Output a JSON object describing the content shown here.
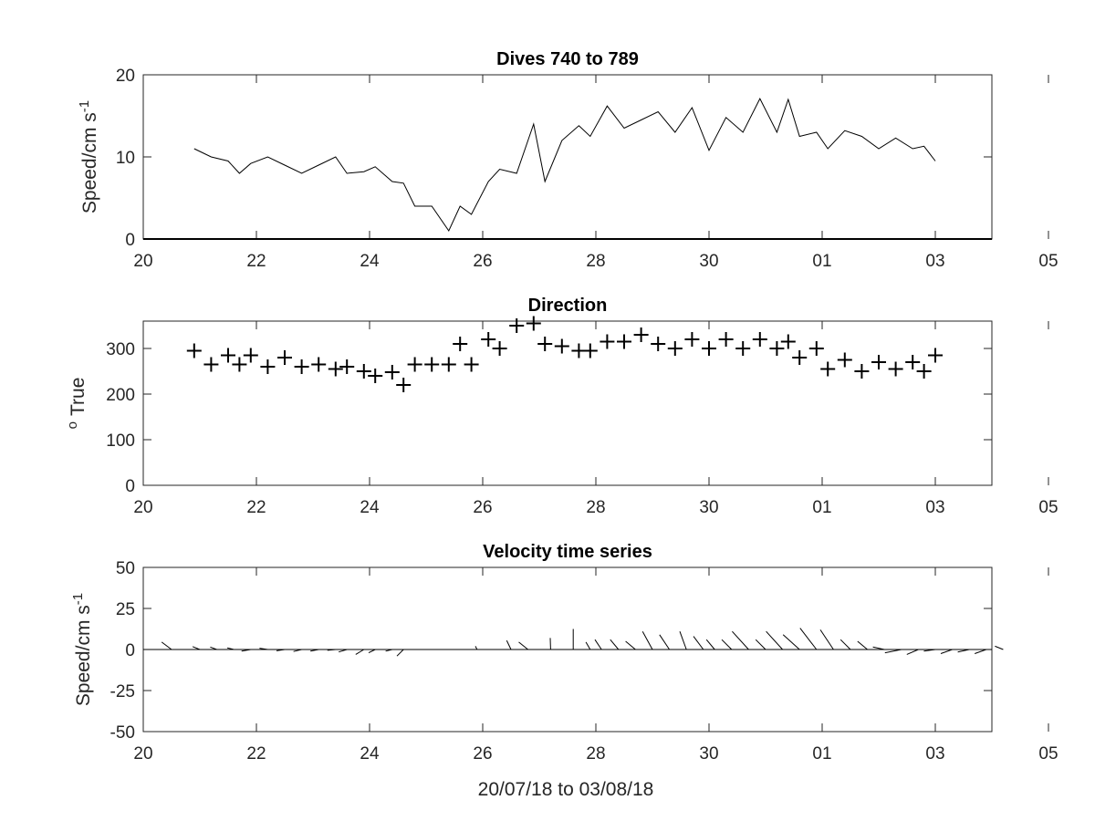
{
  "chart_data": [
    {
      "type": "line",
      "title": "Dives 740 to 789",
      "ylabel": "Speed/cm s",
      "ylabel_sup": "-1",
      "xlim": [
        20,
        35
      ],
      "ylim": [
        0,
        20
      ],
      "x_tick_labels": [
        "20",
        "22",
        "24",
        "26",
        "28",
        "30",
        "01",
        "03",
        "05"
      ],
      "y_ticks": [
        0,
        10,
        20
      ],
      "x": [
        20.9,
        21.2,
        21.5,
        21.7,
        21.9,
        22.2,
        22.5,
        22.8,
        23.1,
        23.4,
        23.6,
        23.9,
        24.1,
        24.4,
        24.6,
        24.8,
        25.1,
        25.4,
        25.6,
        25.8,
        26.1,
        26.3,
        26.6,
        26.9,
        27.1,
        27.4,
        27.7,
        27.9,
        28.2,
        28.5,
        28.8,
        29.1,
        29.4,
        29.7,
        30.0,
        30.3,
        30.6,
        30.9,
        31.2,
        31.4,
        31.6,
        31.9,
        32.1,
        32.4,
        32.7,
        33.0,
        33.3,
        33.6,
        33.8,
        34.0
      ],
      "values": [
        11.0,
        10.0,
        9.5,
        8.0,
        9.2,
        10.0,
        9.0,
        8.0,
        9.0,
        10.0,
        8.0,
        8.2,
        8.8,
        7.0,
        6.8,
        4.0,
        4.0,
        1.0,
        4.0,
        3.0,
        7.0,
        8.5,
        8.0,
        14.0,
        7.0,
        12.0,
        13.8,
        12.5,
        16.2,
        13.5,
        14.5,
        15.5,
        13.0,
        16.0,
        10.8,
        14.8,
        13.0,
        17.1,
        13.0,
        17.0,
        12.5,
        13.0,
        11.0,
        13.2,
        12.5,
        11.0,
        12.3,
        11.0,
        11.3,
        9.5
      ]
    },
    {
      "type": "scatter",
      "title": "Direction",
      "ylabel": "True",
      "ylabel_pre": "o",
      "xlim": [
        20,
        35
      ],
      "ylim": [
        0,
        360
      ],
      "x_tick_labels": [
        "20",
        "22",
        "24",
        "26",
        "28",
        "30",
        "01",
        "03",
        "05"
      ],
      "y_ticks": [
        0,
        100,
        200,
        300
      ],
      "x": [
        20.9,
        21.2,
        21.5,
        21.7,
        21.9,
        22.2,
        22.5,
        22.8,
        23.1,
        23.4,
        23.6,
        23.9,
        24.1,
        24.4,
        24.6,
        24.8,
        25.1,
        25.4,
        25.6,
        25.8,
        26.1,
        26.3,
        26.6,
        26.9,
        27.1,
        27.4,
        27.7,
        27.9,
        28.2,
        28.5,
        28.8,
        29.1,
        29.4,
        29.7,
        30.0,
        30.3,
        30.6,
        30.9,
        31.2,
        31.4,
        31.6,
        31.9,
        32.1,
        32.4,
        32.7,
        33.0,
        33.3,
        33.6,
        33.8,
        34.0
      ],
      "values": [
        295,
        265,
        285,
        265,
        285,
        260,
        280,
        260,
        265,
        255,
        260,
        250,
        240,
        248,
        220,
        265,
        265,
        265,
        310,
        265,
        320,
        300,
        350,
        355,
        310,
        305,
        295,
        295,
        315,
        315,
        330,
        310,
        300,
        320,
        300,
        320,
        300,
        320,
        300,
        315,
        280,
        300,
        255,
        275,
        250,
        270,
        255,
        270,
        250,
        285
      ]
    },
    {
      "type": "quiver",
      "title": "Velocity time series",
      "ylabel": "Speed/cm s",
      "ylabel_sup": "-1",
      "xlabel": "20/07/18 to 03/08/18",
      "xlim": [
        20,
        35
      ],
      "ylim": [
        -50,
        50
      ],
      "x_tick_labels": [
        "20",
        "22",
        "24",
        "26",
        "28",
        "30",
        "01",
        "03",
        "05"
      ],
      "y_ticks": [
        50,
        25,
        0,
        -25,
        -50
      ],
      "vectors": [
        {
          "x": 20.5,
          "u": 3.0,
          "v": 4.5
        },
        {
          "x": 21.0,
          "u": 2.2,
          "v": 1.8
        },
        {
          "x": 21.3,
          "u": 2.0,
          "v": 1.5
        },
        {
          "x": 21.6,
          "u": 2.0,
          "v": 1.0
        },
        {
          "x": 21.9,
          "u": 2.8,
          "v": -1.0
        },
        {
          "x": 22.2,
          "u": 2.5,
          "v": 0.8
        },
        {
          "x": 22.5,
          "u": 2.5,
          "v": -0.8
        },
        {
          "x": 22.8,
          "u": 2.5,
          "v": -1.2
        },
        {
          "x": 23.1,
          "u": 2.5,
          "v": -1.0
        },
        {
          "x": 23.4,
          "u": 2.5,
          "v": -0.5
        },
        {
          "x": 23.6,
          "u": 2.5,
          "v": -1.5
        },
        {
          "x": 23.9,
          "u": 2.5,
          "v": -3.0
        },
        {
          "x": 24.1,
          "u": 2.0,
          "v": -2.0
        },
        {
          "x": 24.4,
          "u": 2.0,
          "v": -1.0
        },
        {
          "x": 24.6,
          "u": 2.0,
          "v": -4.0
        },
        {
          "x": 25.9,
          "u": 0.5,
          "v": 2.0
        },
        {
          "x": 26.5,
          "u": 1.3,
          "v": 5.5
        },
        {
          "x": 26.8,
          "u": 2.8,
          "v": 4.5
        },
        {
          "x": 27.2,
          "u": 0.1,
          "v": 7.0
        },
        {
          "x": 27.6,
          "u": 0.0,
          "v": 12.5
        },
        {
          "x": 27.9,
          "u": 1.3,
          "v": 4.5
        },
        {
          "x": 28.1,
          "u": 2.0,
          "v": 6.0
        },
        {
          "x": 28.4,
          "u": 2.5,
          "v": 6.0
        },
        {
          "x": 28.7,
          "u": 3.0,
          "v": 5.0
        },
        {
          "x": 29.0,
          "u": 3.0,
          "v": 11.0
        },
        {
          "x": 29.3,
          "u": 3.0,
          "v": 9.0
        },
        {
          "x": 29.6,
          "u": 2.0,
          "v": 11.0
        },
        {
          "x": 29.9,
          "u": 3.0,
          "v": 8.0
        },
        {
          "x": 30.1,
          "u": 2.5,
          "v": 6.0
        },
        {
          "x": 30.4,
          "u": 3.0,
          "v": 6.0
        },
        {
          "x": 30.7,
          "u": 5.0,
          "v": 11.0
        },
        {
          "x": 31.0,
          "u": 3.0,
          "v": 6.0
        },
        {
          "x": 31.3,
          "u": 5.0,
          "v": 11.0
        },
        {
          "x": 31.6,
          "u": 5.0,
          "v": 9.0
        },
        {
          "x": 31.9,
          "u": 5.0,
          "v": 13.0
        },
        {
          "x": 32.2,
          "u": 4.0,
          "v": 12.0
        },
        {
          "x": 32.5,
          "u": 3.0,
          "v": 6.0
        },
        {
          "x": 32.8,
          "u": 3.0,
          "v": 5.0
        },
        {
          "x": 33.1,
          "u": 3.5,
          "v": 1.5
        },
        {
          "x": 33.4,
          "u": 5.0,
          "v": -2.0
        },
        {
          "x": 33.7,
          "u": 3.5,
          "v": -3.0
        },
        {
          "x": 34.0,
          "u": 3.5,
          "v": -1.0
        },
        {
          "x": 34.3,
          "u": 3.5,
          "v": -2.5
        },
        {
          "x": 34.6,
          "u": 3.5,
          "v": -1.5
        },
        {
          "x": 34.9,
          "u": 3.5,
          "v": -2.5
        },
        {
          "x": 35.2,
          "u": 2.5,
          "v": 2.0
        }
      ]
    }
  ]
}
